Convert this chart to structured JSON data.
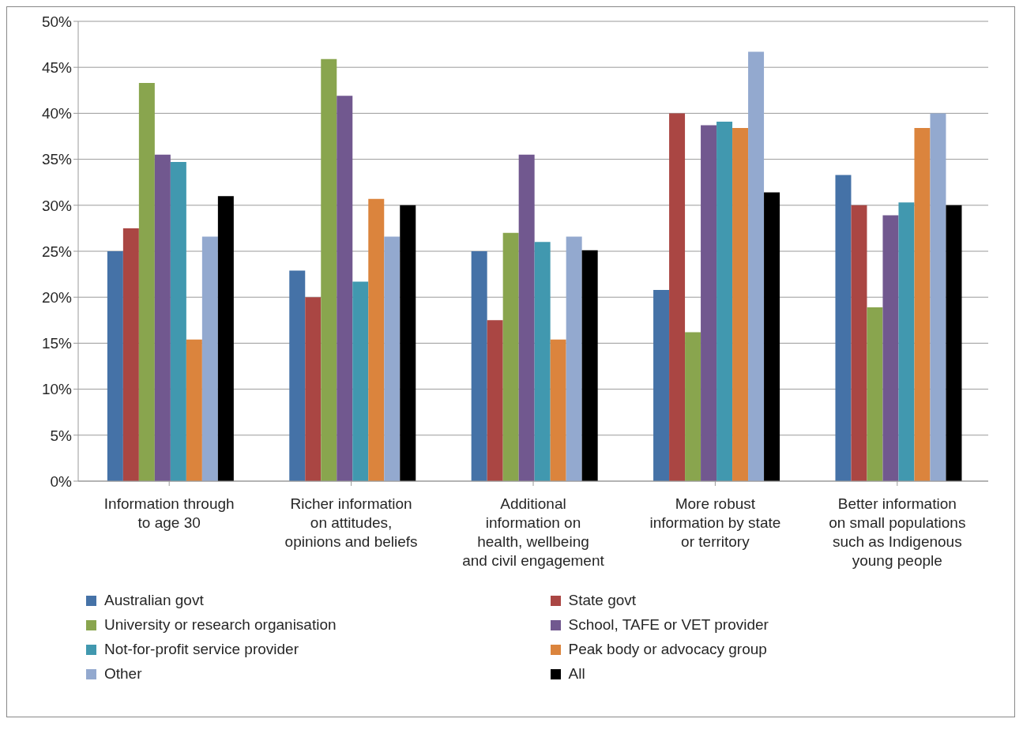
{
  "chart_data": {
    "type": "bar",
    "categories": [
      "Information through to age 30",
      "Richer information on attitudes, opinions and beliefs",
      "Additional information on health, wellbeing and civil engagement",
      "More robust information by state or territory",
      "Better information on small populations such as Indigenous young people"
    ],
    "series": [
      {
        "name": "Australian govt",
        "color": "#4572a7",
        "values": [
          25,
          22.9,
          25,
          20.8,
          33.3
        ]
      },
      {
        "name": "State govt",
        "color": "#aa4643",
        "values": [
          27.5,
          20,
          17.5,
          40,
          30
        ]
      },
      {
        "name": "University or research organisation",
        "color": "#89a54e",
        "values": [
          43.3,
          45.9,
          27,
          16.2,
          18.9
        ]
      },
      {
        "name": "School, TAFE or VET provider",
        "color": "#71588f",
        "values": [
          35.5,
          41.9,
          35.5,
          38.7,
          28.9
        ]
      },
      {
        "name": "Not-for-profit service provider",
        "color": "#4198af",
        "values": [
          34.7,
          21.7,
          26,
          39.1,
          30.3
        ]
      },
      {
        "name": "Peak body or advocacy group",
        "color": "#db843d",
        "values": [
          15.4,
          30.7,
          15.4,
          38.4,
          38.4
        ]
      },
      {
        "name": "Other",
        "color": "#93a9cf",
        "values": [
          26.6,
          26.6,
          26.6,
          46.7,
          40
        ]
      },
      {
        "name": "All",
        "color": "#000000",
        "values": [
          31,
          30,
          25.1,
          31.4,
          30
        ]
      }
    ],
    "ylim": [
      0,
      50
    ],
    "yticks": [
      {
        "value": 0,
        "label": "0%"
      },
      {
        "value": 5,
        "label": "5%"
      },
      {
        "value": 10,
        "label": "10%"
      },
      {
        "value": 15,
        "label": "15%"
      },
      {
        "value": 20,
        "label": "20%"
      },
      {
        "value": 25,
        "label": "25%"
      },
      {
        "value": 30,
        "label": "30%"
      },
      {
        "value": 35,
        "label": "35%"
      },
      {
        "value": 40,
        "label": "40%"
      },
      {
        "value": 45,
        "label": "45%"
      },
      {
        "value": 50,
        "label": "50%"
      }
    ],
    "grid": "y",
    "legend": "bottom"
  }
}
